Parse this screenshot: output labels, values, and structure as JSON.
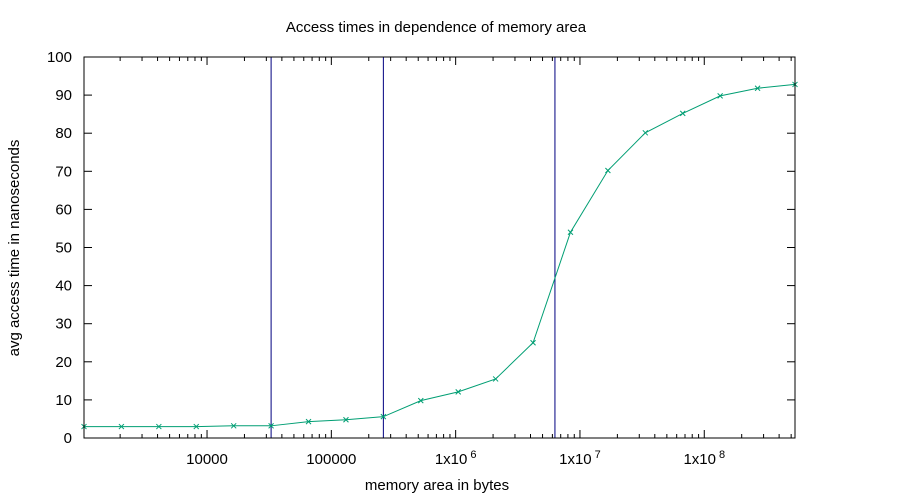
{
  "chart_data": {
    "type": "line",
    "title": "Access times in dependence of memory area",
    "xlabel": "memory area in bytes",
    "ylabel": "avg access time in nanoseconds",
    "x_scale": "log",
    "xlim": [
      1024,
      536870912
    ],
    "ylim": [
      0,
      100
    ],
    "grid": false,
    "y_ticks": [
      0,
      10,
      20,
      30,
      40,
      50,
      60,
      70,
      80,
      90,
      100
    ],
    "x_ticks": [
      {
        "value": 10000,
        "label": "10000",
        "mantissa": "",
        "exp": ""
      },
      {
        "value": 100000,
        "label": "100000",
        "mantissa": "",
        "exp": ""
      },
      {
        "value": 1000000,
        "label": "",
        "mantissa": "1x10",
        "exp": "6"
      },
      {
        "value": 10000000,
        "label": "",
        "mantissa": "1x10",
        "exp": "7"
      },
      {
        "value": 100000000,
        "label": "",
        "mantissa": "1x10",
        "exp": "8"
      }
    ],
    "series": [
      {
        "color": "#009e73",
        "marker": "x",
        "x": [
          1024,
          2048,
          4096,
          8192,
          16384,
          32768,
          65536,
          131072,
          262144,
          524288,
          1048576,
          2097152,
          4194304,
          8388608,
          16777216,
          33554432,
          67108864,
          134217728,
          268435456,
          536870912
        ],
        "y": [
          3.0,
          3.0,
          3.0,
          3.0,
          3.2,
          3.2,
          4.3,
          4.8,
          5.6,
          9.8,
          12.1,
          15.5,
          25.0,
          54.0,
          70.2,
          80.1,
          85.2,
          89.8,
          91.8,
          92.8
        ]
      }
    ],
    "vlines": {
      "color": "#000080",
      "x": [
        32768,
        262144,
        6291456
      ]
    }
  }
}
